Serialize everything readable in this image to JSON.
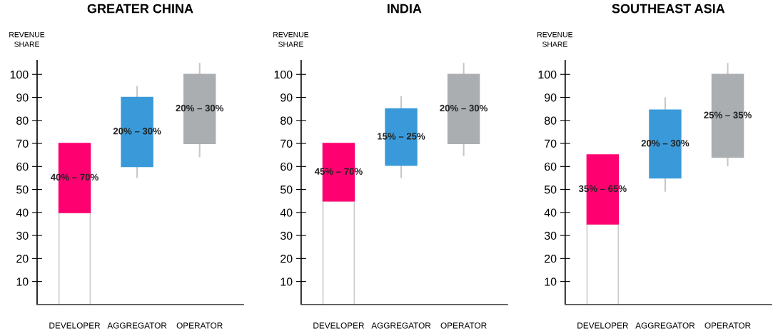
{
  "chart_data": [
    {
      "type": "bar",
      "title": "GREATER CHINA",
      "ylabel": "REVENUE\nSHARE",
      "categories": [
        "DEVELOPER",
        "AGGREGATOR",
        "OPERATOR"
      ],
      "ylim": [
        0,
        106
      ],
      "yticks": [
        10,
        20,
        30,
        40,
        50,
        60,
        70,
        80,
        90,
        100
      ],
      "grid": false,
      "legend": false,
      "series": [
        {
          "color": "#ffffff",
          "values": [
            40,
            null,
            null
          ]
        },
        {
          "colors": [
            "#ff0070",
            "#3a9ad9",
            "#abaeb1"
          ],
          "base": [
            40,
            60,
            70
          ],
          "values": [
            30,
            30,
            30
          ],
          "errors": [
            null,
            [
              55,
              95
            ],
            [
              64,
              105
            ]
          ]
        }
      ],
      "annotations": [
        "40% – 70%",
        "20% – 30%",
        "20% – 30%"
      ]
    },
    {
      "type": "bar",
      "title": "INDIA",
      "ylabel": "REVENUE\nSHARE",
      "categories": [
        "DEVELOPER",
        "AGGREGATOR",
        "OPERATOR"
      ],
      "ylim": [
        0,
        106
      ],
      "yticks": [
        10,
        20,
        30,
        40,
        50,
        60,
        70,
        80,
        90,
        100
      ],
      "grid": false,
      "legend": false,
      "series": [
        {
          "color": "#ffffff",
          "values": [
            45,
            null,
            null
          ]
        },
        {
          "colors": [
            "#ff0070",
            "#3a9ad9",
            "#abaeb1"
          ],
          "base": [
            45,
            60.5,
            70
          ],
          "values": [
            25,
            24.5,
            30
          ],
          "errors": [
            null,
            [
              55,
              90.5
            ],
            [
              64.5,
              105
            ]
          ]
        }
      ],
      "annotations": [
        "45% – 70%",
        "15% – 25%",
        "20% – 30%"
      ]
    },
    {
      "type": "bar",
      "title": "SOUTHEAST ASIA",
      "ylabel": "REVENUE\nSHARE",
      "categories": [
        "DEVELOPER",
        "AGGREGATOR",
        "OPERATOR"
      ],
      "ylim": [
        0,
        106
      ],
      "yticks": [
        10,
        20,
        30,
        40,
        50,
        60,
        70,
        80,
        90,
        100
      ],
      "grid": false,
      "legend": false,
      "series": [
        {
          "color": "#ffffff",
          "values": [
            35,
            null,
            null
          ]
        },
        {
          "colors": [
            "#ff0070",
            "#3a9ad9",
            "#abaeb1"
          ],
          "base": [
            35,
            55,
            64
          ],
          "values": [
            30,
            29.5,
            36
          ],
          "errors": [
            null,
            [
              49,
              90
            ],
            [
              60,
              105
            ]
          ]
        }
      ],
      "annotations": [
        "35% – 65%",
        "20% – 30%",
        "25% – 35%"
      ]
    }
  ]
}
